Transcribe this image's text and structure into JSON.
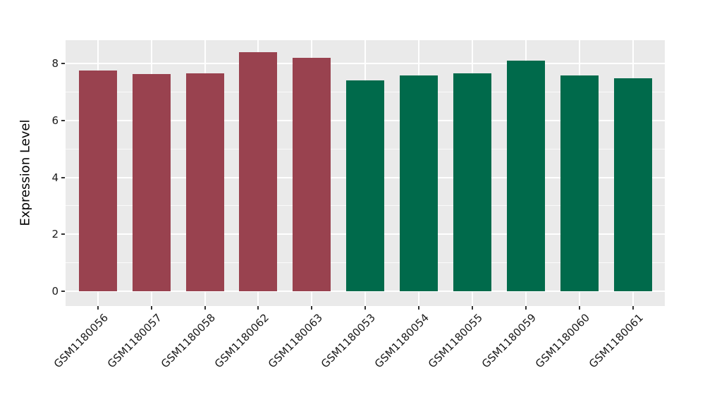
{
  "chart_data": {
    "type": "bar",
    "title": "",
    "xlabel": "",
    "ylabel": "Expression Level",
    "categories": [
      "GSM1180056",
      "GSM1180057",
      "GSM1180058",
      "GSM1180062",
      "GSM1180063",
      "GSM1180053",
      "GSM1180054",
      "GSM1180055",
      "GSM1180059",
      "GSM1180060",
      "GSM1180061"
    ],
    "values": [
      7.75,
      7.63,
      7.65,
      8.4,
      8.2,
      7.41,
      7.58,
      7.65,
      8.1,
      7.57,
      7.48
    ],
    "bar_colors": [
      "#99424F",
      "#99424F",
      "#99424F",
      "#99424F",
      "#99424F",
      "#006A4B",
      "#006A4B",
      "#006A4B",
      "#006A4B",
      "#006A4B",
      "#006A4B"
    ],
    "groups": [
      {
        "color": "#99424F",
        "samples": [
          "GSM1180056",
          "GSM1180057",
          "GSM1180058",
          "GSM1180062",
          "GSM1180063"
        ]
      },
      {
        "color": "#006A4B",
        "samples": [
          "GSM1180053",
          "GSM1180054",
          "GSM1180055",
          "GSM1180059",
          "GSM1180060",
          "GSM1180061"
        ]
      }
    ],
    "yticks": [
      0,
      2,
      4,
      6,
      8
    ],
    "ytick_labels": [
      "0",
      "2",
      "4",
      "6",
      "8"
    ],
    "minor_yticks": [
      1,
      3,
      5,
      7
    ],
    "ylim": [
      -0.52,
      8.82
    ],
    "x_tick_rotation_deg": 45,
    "grid": "horizontal major+minor and vertical major, white on gray panel",
    "legend": "none",
    "panel_background": "#EAEAEA",
    "gridline_color": "#FFFFFF",
    "tick_text_color": "#1a1a1a"
  }
}
